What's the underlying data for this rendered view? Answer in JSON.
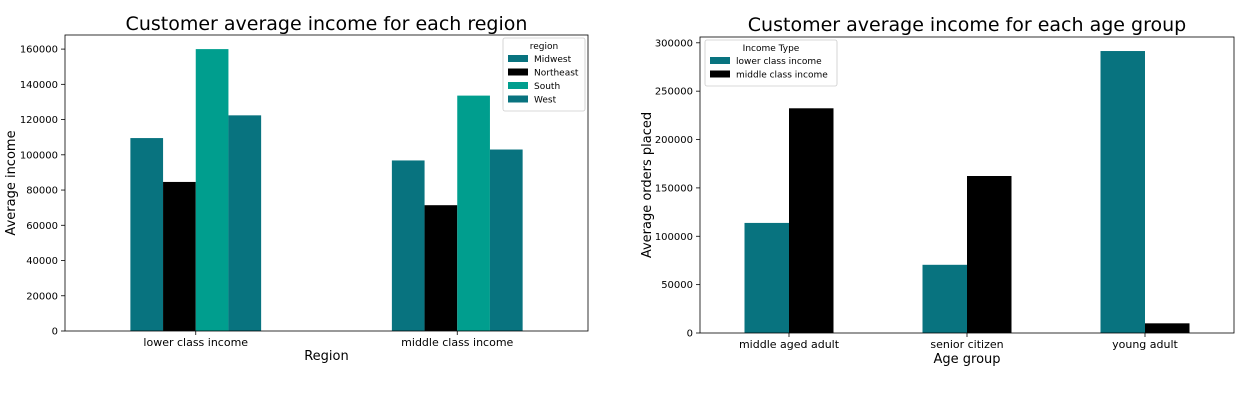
{
  "chart_data": [
    {
      "type": "bar",
      "title": "Customer average income for each region",
      "xlabel": "Region",
      "ylabel": "Average income",
      "categories": [
        "lower class income",
        "middle class income"
      ],
      "ylim": [
        0,
        168000
      ],
      "yticks": [
        0,
        20000,
        40000,
        60000,
        80000,
        100000,
        120000,
        140000,
        160000
      ],
      "grid": false,
      "legend": {
        "title": "region",
        "placement": "top-right"
      },
      "series": [
        {
          "name": "Midwest",
          "color": "#08737f",
          "values": [
            109500,
            96800
          ]
        },
        {
          "name": "Northeast",
          "color": "#000000",
          "values": [
            84600,
            71400
          ]
        },
        {
          "name": "South",
          "color": "#009e8e",
          "values": [
            160000,
            133600
          ]
        },
        {
          "name": "West",
          "color": "#08737f",
          "values": [
            122400,
            103000
          ]
        }
      ]
    },
    {
      "type": "bar",
      "title": "Customer average income for each age group",
      "xlabel": "Age group",
      "ylabel": "Average orders placed",
      "categories": [
        "middle aged adult",
        "senior citizen",
        "young adult"
      ],
      "ylim": [
        0,
        306000
      ],
      "yticks": [
        0,
        50000,
        100000,
        150000,
        200000,
        250000,
        300000
      ],
      "grid": false,
      "legend": {
        "title": "Income Type",
        "placement": "top-left"
      },
      "series": [
        {
          "name": "lower class income",
          "color": "#08737f",
          "values": [
            113800,
            70500,
            291500
          ]
        },
        {
          "name": "middle class income",
          "color": "#000000",
          "values": [
            232300,
            162300,
            10000
          ]
        }
      ]
    }
  ]
}
